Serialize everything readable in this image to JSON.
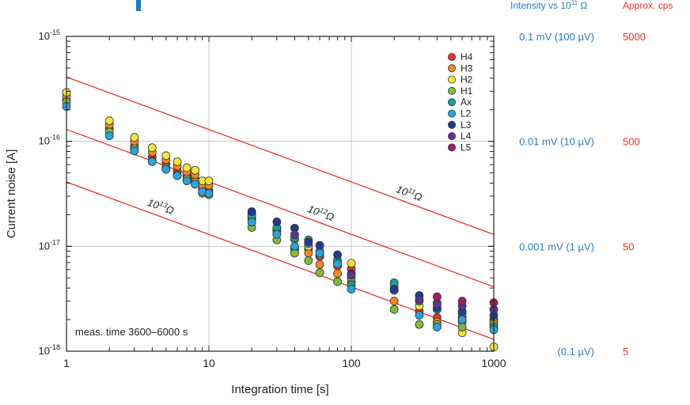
{
  "chart_data": {
    "type": "scatter",
    "title": "",
    "xlabel": "Integration time [s]",
    "ylabel": "Current noise [A]",
    "xscale": "log",
    "yscale": "log",
    "xlim": [
      1,
      1000
    ],
    "ylim": [
      1e-18,
      1e-15
    ],
    "grid": true,
    "x_ticks": [
      {
        "value": 1,
        "label": "1"
      },
      {
        "value": 10,
        "label": "10"
      },
      {
        "value": 100,
        "label": "100"
      },
      {
        "value": 1000,
        "label": "1000"
      }
    ],
    "y_ticks": [
      {
        "value": 1e-15,
        "base": "10",
        "exp": "-15"
      },
      {
        "value": 1e-16,
        "base": "10",
        "exp": "-16"
      },
      {
        "value": 1e-17,
        "base": "10",
        "exp": "-17"
      },
      {
        "value": 1e-18,
        "base": "10",
        "exp": "-18"
      }
    ],
    "annotation": "meas. time 3600–6000 s",
    "legend": {
      "placement": "top-right",
      "entries": [
        {
          "name": "H4",
          "color": "#e8312f"
        },
        {
          "name": "H3",
          "color": "#f08a24"
        },
        {
          "name": "H2",
          "color": "#f2e53a"
        },
        {
          "name": "H1",
          "color": "#7dbb3f"
        },
        {
          "name": "Ax",
          "color": "#1a9e9a"
        },
        {
          "name": "L2",
          "color": "#2ba3dd"
        },
        {
          "name": "L3",
          "color": "#243a8f"
        },
        {
          "name": "L4",
          "color": "#5a3592"
        },
        {
          "name": "L5",
          "color": "#a11d5e"
        }
      ]
    },
    "reference_lines": [
      {
        "label_base": "10",
        "label_exp": "11",
        "label_unit": "Ω",
        "value_at_1s": 4.1e-16,
        "slope": -0.5,
        "color": "#e8312f"
      },
      {
        "label_base": "10",
        "label_exp": "12",
        "label_unit": "Ω",
        "value_at_1s": 1.3e-16,
        "slope": -0.5,
        "color": "#e8312f"
      },
      {
        "label_base": "10",
        "label_exp": "13",
        "label_unit": "Ω",
        "value_at_1s": 4.1e-17,
        "slope": -0.5,
        "color": "#e8312f"
      }
    ],
    "units_note": "y values in A",
    "series": [
      {
        "name": "H4",
        "points": [
          [
            1,
            2.45e-16
          ],
          [
            2,
            1.32e-16
          ],
          [
            3,
            9e-17
          ],
          [
            4,
            7.1e-17
          ],
          [
            5,
            6.1e-17
          ],
          [
            6,
            5.2e-17
          ],
          [
            7,
            4.7e-17
          ],
          [
            8,
            4.4e-17
          ],
          [
            9,
            3.5e-17
          ],
          [
            10,
            3.4e-17
          ],
          [
            20,
            1.83e-17
          ],
          [
            30,
            1.39e-17
          ],
          [
            40,
            9.3e-18
          ],
          [
            50,
            9.5e-18
          ],
          [
            60,
            8e-18
          ],
          [
            80,
            6.5e-18
          ],
          [
            100,
            6.1e-18
          ],
          [
            200,
            4e-18
          ],
          [
            300,
            2.4e-18
          ],
          [
            400,
            2.1e-18
          ],
          [
            600,
            2.1e-18
          ],
          [
            1000,
            2e-18
          ]
        ]
      },
      {
        "name": "H3",
        "points": [
          [
            1,
            2.68e-16
          ],
          [
            2,
            1.44e-16
          ],
          [
            3,
            1e-16
          ],
          [
            4,
            7.9e-17
          ],
          [
            5,
            6.7e-17
          ],
          [
            6,
            5.8e-17
          ],
          [
            7,
            5.1e-17
          ],
          [
            8,
            4.8e-17
          ],
          [
            9,
            3.8e-17
          ],
          [
            10,
            3.8e-17
          ],
          [
            20,
            1.9e-17
          ],
          [
            30,
            1.44e-17
          ],
          [
            40,
            9.8e-18
          ],
          [
            50,
            8.6e-18
          ],
          [
            60,
            6.7e-18
          ],
          [
            80,
            5.5e-18
          ],
          [
            100,
            4.6e-18
          ],
          [
            200,
            3e-18
          ],
          [
            300,
            1.8e-18
          ],
          [
            400,
            1.9e-18
          ],
          [
            600,
            1.9e-18
          ],
          [
            1000,
            1.9e-18
          ]
        ]
      },
      {
        "name": "H2",
        "points": [
          [
            1,
            2.93e-16
          ],
          [
            2,
            1.57e-16
          ],
          [
            3,
            1.09e-16
          ],
          [
            4,
            8.7e-17
          ],
          [
            5,
            7.3e-17
          ],
          [
            6,
            6.4e-17
          ],
          [
            7,
            5.6e-17
          ],
          [
            8,
            5.3e-17
          ],
          [
            9,
            4.2e-17
          ],
          [
            10,
            4.2e-17
          ],
          [
            20,
            2.03e-17
          ],
          [
            30,
            1.5e-17
          ],
          [
            40,
            1.16e-17
          ],
          [
            50,
            1e-17
          ],
          [
            60,
            8.4e-18
          ],
          [
            80,
            7e-18
          ],
          [
            100,
            6.9e-18
          ],
          [
            200,
            4.2e-18
          ],
          [
            300,
            2.7e-18
          ],
          [
            400,
            2.9e-18
          ],
          [
            600,
            1.5e-18
          ],
          [
            1000,
            1.1e-18
          ]
        ]
      },
      {
        "name": "H1",
        "points": [
          [
            1,
            2.38e-16
          ],
          [
            2,
            1.23e-16
          ],
          [
            3,
            8.5e-17
          ],
          [
            4,
            6.5e-17
          ],
          [
            5,
            5.6e-17
          ],
          [
            6,
            4.8e-17
          ],
          [
            7,
            4.4e-17
          ],
          [
            8,
            4.1e-17
          ],
          [
            9,
            3.2e-17
          ],
          [
            10,
            3.1e-17
          ],
          [
            20,
            1.51e-17
          ],
          [
            30,
            1.15e-17
          ],
          [
            40,
            8.6e-18
          ],
          [
            50,
            7.3e-18
          ],
          [
            60,
            5.6e-18
          ],
          [
            80,
            4.6e-18
          ],
          [
            100,
            5e-18
          ],
          [
            200,
            2.5e-18
          ],
          [
            300,
            1.8e-18
          ],
          [
            400,
            1.8e-18
          ],
          [
            600,
            1.7e-18
          ],
          [
            1000,
            1.8e-18
          ]
        ]
      },
      {
        "name": "Ax",
        "points": [
          [
            20,
            1.96e-17
          ],
          [
            30,
            1.51e-17
          ],
          [
            40,
            1.2e-17
          ],
          [
            50,
            1.15e-17
          ],
          [
            60,
            9e-18
          ],
          [
            80,
            7.4e-18
          ],
          [
            100,
            4.3e-18
          ],
          [
            200,
            4.5e-18
          ],
          [
            300,
            3e-18
          ],
          [
            400,
            2.5e-18
          ],
          [
            600,
            2.3e-18
          ],
          [
            1000,
            1.7e-18
          ]
        ]
      },
      {
        "name": "L2",
        "points": [
          [
            1,
            2.15e-16
          ],
          [
            2,
            1.13e-16
          ],
          [
            3,
            8.1e-17
          ],
          [
            4,
            6.4e-17
          ],
          [
            5,
            5.4e-17
          ],
          [
            6,
            4.7e-17
          ],
          [
            7,
            4.2e-17
          ],
          [
            8,
            3.9e-17
          ],
          [
            9,
            3.3e-17
          ],
          [
            10,
            3.2e-17
          ],
          [
            20,
            1.7e-17
          ],
          [
            30,
            1.3e-17
          ],
          [
            40,
            1e-17
          ],
          [
            50,
            1.06e-17
          ],
          [
            60,
            8.6e-18
          ],
          [
            80,
            6.8e-18
          ],
          [
            100,
            3.9e-18
          ],
          [
            200,
            3.8e-18
          ],
          [
            300,
            2.2e-18
          ],
          [
            400,
            1.7e-18
          ],
          [
            600,
            2e-18
          ],
          [
            1000,
            1.6e-18
          ]
        ]
      },
      {
        "name": "L3",
        "points": [
          [
            20,
            2.14e-17
          ],
          [
            30,
            1.71e-17
          ],
          [
            40,
            1.49e-17
          ],
          [
            50,
            1.1e-17
          ],
          [
            60,
            1.02e-17
          ],
          [
            80,
            8.3e-18
          ],
          [
            100,
            5.5e-18
          ],
          [
            200,
            3.9e-18
          ],
          [
            300,
            3.4e-18
          ],
          [
            400,
            2.6e-18
          ],
          [
            600,
            2.4e-18
          ],
          [
            1000,
            2.2e-18
          ]
        ]
      },
      {
        "name": "L4",
        "points": [
          [
            40,
            1.29e-17
          ],
          [
            100,
            5.3e-18
          ],
          [
            300,
            3.1e-18
          ],
          [
            400,
            2.8e-18
          ],
          [
            600,
            2.7e-18
          ],
          [
            1000,
            2.5e-18
          ]
        ]
      },
      {
        "name": "L5",
        "points": [
          [
            400,
            3.3e-18
          ],
          [
            600,
            3e-18
          ],
          [
            1000,
            2.9e-18
          ]
        ]
      }
    ]
  },
  "right_axis": {
    "header_intensity": {
      "text": "Intensity vs 10",
      "exp": "11",
      "unit": " Ω"
    },
    "header_cps": "Approx. cps",
    "rows": [
      {
        "value": 1e-15,
        "mv": "0.1 mV",
        "uv": "(100 µV)",
        "cps": "5000"
      },
      {
        "value": 1e-16,
        "mv": "0.01 mV",
        "uv": "(10 µV)",
        "cps": "500"
      },
      {
        "value": 1e-17,
        "mv": "0.001 mV",
        "uv": "(1 µV)",
        "cps": "50"
      },
      {
        "value": 1e-18,
        "mv": "",
        "uv": "(0.1 µV)",
        "cps": "5"
      }
    ],
    "intensity_color": "#2b7bbf",
    "cps_color": "#e8312f"
  }
}
